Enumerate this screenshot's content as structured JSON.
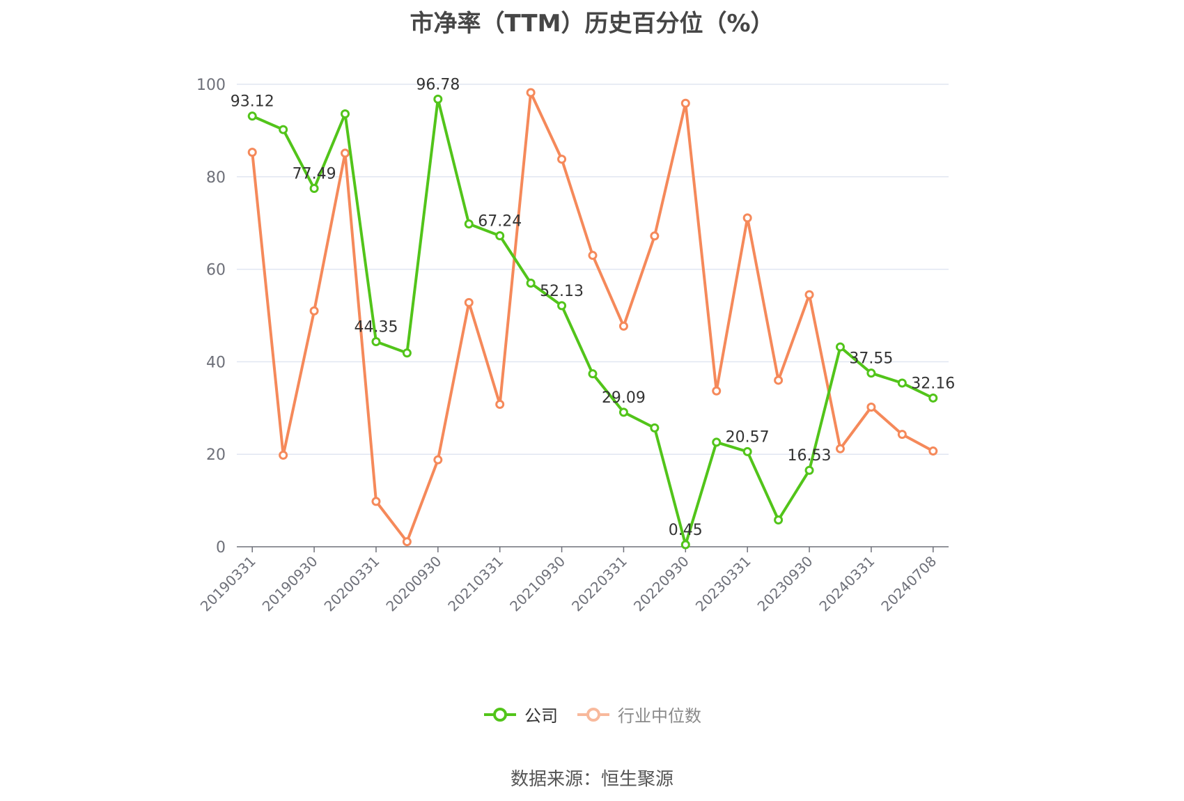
{
  "chart_data": {
    "type": "line",
    "title": "市净率（TTM）历史百分位（%）",
    "xlabel": "",
    "ylabel": "",
    "ylim": [
      0,
      100
    ],
    "yticks": [
      0,
      20,
      40,
      60,
      80,
      100
    ],
    "grid": true,
    "legend_position": "bottom",
    "x": [
      "20190331",
      "20190630",
      "20190930",
      "20191231",
      "20200331",
      "20200630",
      "20200930",
      "20201231",
      "20210331",
      "20210630",
      "20210930",
      "20211231",
      "20220331",
      "20220630",
      "20220930",
      "20221231",
      "20230331",
      "20230630",
      "20230930",
      "20231231",
      "20240331",
      "20240630",
      "20240708"
    ],
    "x_tick_labels": [
      "20190331",
      "20190930",
      "20200331",
      "20200930",
      "20210331",
      "20210930",
      "20220331",
      "20220930",
      "20230331",
      "20230930",
      "20240331",
      "20240708"
    ],
    "series": [
      {
        "name": "公司",
        "color": "#52c41a",
        "values": [
          93.12,
          90.2,
          77.49,
          93.6,
          44.35,
          41.9,
          96.78,
          69.8,
          67.24,
          57.0,
          52.13,
          37.4,
          29.09,
          25.7,
          0.45,
          22.6,
          20.57,
          5.8,
          16.53,
          43.2,
          37.55,
          35.4,
          32.16
        ],
        "labels": {
          "0": "93.12",
          "2": "77.49",
          "4": "44.35",
          "6": "96.78",
          "8": "67.24",
          "10": "52.13",
          "12": "29.09",
          "14": "0.45",
          "16": "20.57",
          "18": "16.53",
          "20": "37.55",
          "22": "32.16"
        }
      },
      {
        "name": "行业中位数",
        "color": "#f5895a",
        "values": [
          85.3,
          19.8,
          51.0,
          85.1,
          9.8,
          1.1,
          18.8,
          52.8,
          30.8,
          98.2,
          83.8,
          63.0,
          47.7,
          67.2,
          95.9,
          33.7,
          71.1,
          36.0,
          54.5,
          21.2,
          30.2,
          24.3,
          20.7
        ]
      }
    ]
  },
  "legend": {
    "items": [
      {
        "label": "公司",
        "color": "#52c41a",
        "text_color": "#333333"
      },
      {
        "label": "行业中位数",
        "color": "#f5895a",
        "text_color": "#8a8a8a"
      }
    ]
  },
  "source": "数据来源：恒生聚源"
}
